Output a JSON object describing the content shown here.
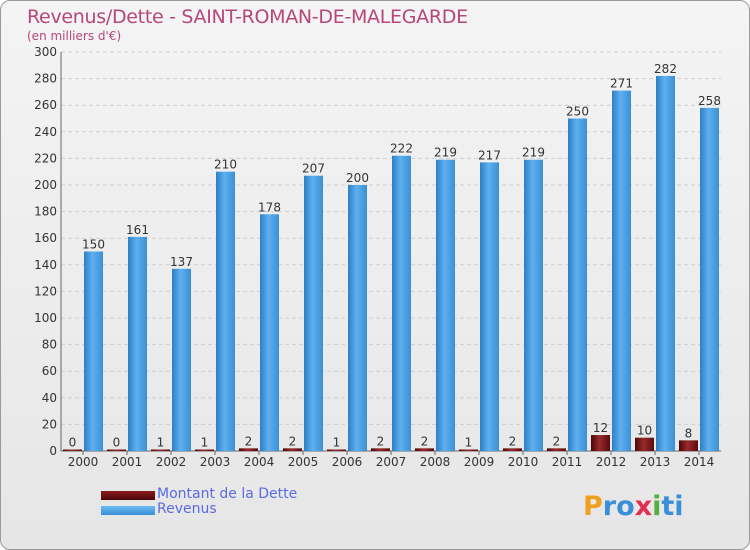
{
  "header": {
    "title": "Revenus/Dette - SAINT-ROMAN-DE-MALEGARDE",
    "subtitle": "(en milliers d'€)"
  },
  "legend": [
    {
      "label": "Montant de la Dette",
      "color": "#6b0f10"
    },
    {
      "label": "Revenus",
      "color": "#4a9fe0"
    }
  ],
  "logo": {
    "letters": [
      "P",
      "r",
      "o",
      "x",
      "i",
      "t",
      "i"
    ],
    "colors": [
      "#f0a020",
      "#3a8fd8",
      "#3a8fd8",
      "#e03050",
      "#50b040",
      "#3a8fd8",
      "#3a8fd8"
    ]
  },
  "chart_data": {
    "type": "bar",
    "categories": [
      "2000",
      "2001",
      "2002",
      "2003",
      "2004",
      "2005",
      "2006",
      "2007",
      "2008",
      "2009",
      "2010",
      "2011",
      "2012",
      "2013",
      "2014"
    ],
    "series": [
      {
        "name": "Montant de la Dette",
        "color": "#6b0f10",
        "values": [
          0,
          0,
          1,
          1,
          2,
          2,
          1,
          2,
          2,
          1,
          2,
          2,
          12,
          10,
          8
        ]
      },
      {
        "name": "Revenus",
        "color": "#4a9fe0",
        "values": [
          150,
          161,
          137,
          210,
          178,
          207,
          200,
          222,
          219,
          217,
          219,
          250,
          271,
          282,
          258
        ]
      }
    ],
    "ylim": [
      0,
      300
    ],
    "yticks": [
      0,
      20,
      40,
      60,
      80,
      100,
      120,
      140,
      160,
      180,
      200,
      220,
      240,
      260,
      280,
      300
    ],
    "grid": true
  }
}
